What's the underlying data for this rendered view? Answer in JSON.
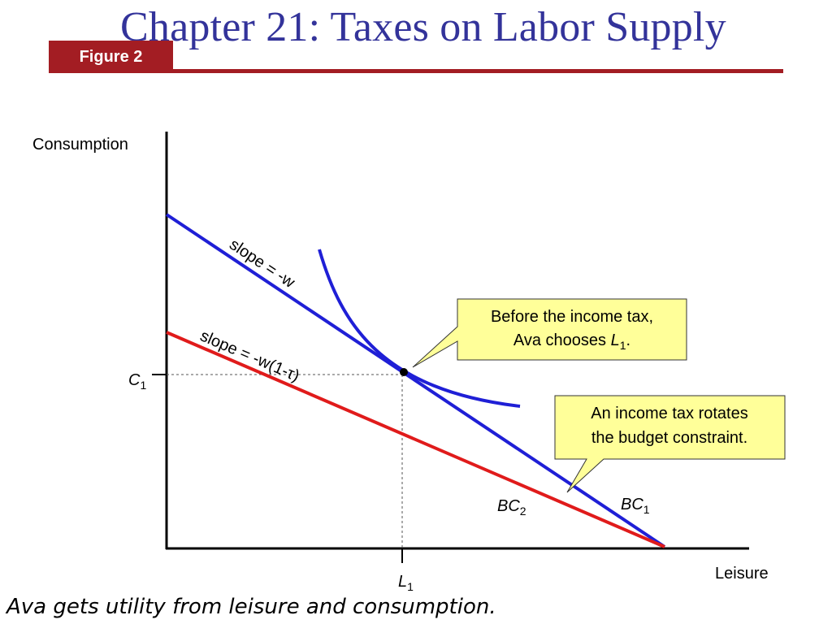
{
  "header": {
    "title": "Chapter 21: Taxes on Labor Supply",
    "figure_label": "Figure 2"
  },
  "diagram": {
    "y_axis_label": "Consumption",
    "x_axis_label": "Leisure",
    "c1_label": "C",
    "c1_sub": "1",
    "l1_label": "L",
    "l1_sub": "1",
    "bc1_label": "BC",
    "bc1_sub": "1",
    "bc2_label": "BC",
    "bc2_sub": "2",
    "slope_bc1": "slope = -w",
    "slope_bc2": "slope = -w(1-τ)",
    "callout_before_line1": "Before the income tax,",
    "callout_before_line2_prefix": "Ava chooses ",
    "callout_before_line2_var": "L",
    "callout_before_line2_sub": "1",
    "callout_before_line2_suffix": ".",
    "callout_rotate_line1": "An income tax rotates",
    "callout_rotate_line2": "the budget constraint."
  },
  "colors": {
    "title": "#33339a",
    "accent": "#a31d23",
    "bc1": "#1f1fd6",
    "bc2": "#e01b1b",
    "callout_fill": "#ffff99"
  },
  "caption": "Ava gets utility from leisure and consumption."
}
